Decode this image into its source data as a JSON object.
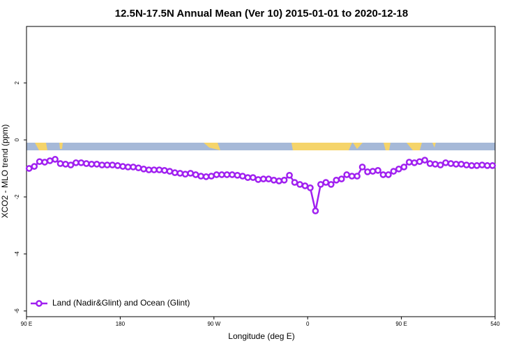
{
  "chart_data": {
    "type": "line",
    "title": "12.5N-17.5N Annual Mean (Ver 10)   2015-01-01 to 2020-12-18",
    "x_label": "Longitude (deg E)",
    "y_label": "XCO2 - MLO trend (ppm)",
    "xlim": [
      90,
      540
    ],
    "ylim": [
      -6.2,
      3.98
    ],
    "xticks": [
      {
        "value": 90,
        "label": "90 E"
      },
      180,
      {
        "value": 270,
        "label": "90 W"
      },
      {
        "value": 360,
        "label": "0"
      },
      {
        "value": 450,
        "label": "90 E"
      },
      540
    ],
    "yticks": [
      -6,
      -4,
      -2,
      0,
      2
    ],
    "legend": "bottom-left",
    "x": [
      92.5,
      97.5,
      102.5,
      107.5,
      112.5,
      117.5,
      122.5,
      127.5,
      132.5,
      137.5,
      142.5,
      147.5,
      152.5,
      157.5,
      162.5,
      167.5,
      172.5,
      177.5,
      182.5,
      187.5,
      192.5,
      197.5,
      202.5,
      207.5,
      212.5,
      217.5,
      222.5,
      227.5,
      232.5,
      237.5,
      242.5,
      247.5,
      252.5,
      257.5,
      262.5,
      267.5,
      272.5,
      277.5,
      282.5,
      287.5,
      292.5,
      297.5,
      302.5,
      307.5,
      312.5,
      317.5,
      322.5,
      327.5,
      332.5,
      337.5,
      342.5,
      347.5,
      352.5,
      357.5,
      362.5,
      367.5,
      372.5,
      377.5,
      382.5,
      387.5,
      392.5,
      397.5,
      402.5,
      407.5,
      412.5,
      417.5,
      422.5,
      427.5,
      432.5,
      437.5,
      442.5,
      447.5,
      452.5,
      457.5,
      462.5,
      467.5,
      472.5,
      477.5,
      482.5,
      487.5,
      492.5,
      497.5,
      502.5,
      507.5,
      512.5,
      517.5,
      522.5,
      527.5,
      532.5,
      537.5
    ],
    "series": [
      {
        "name": "Land (Nadir&Glint) and Ocean (Glint)",
        "color": "#a020f0",
        "values": [
          -1.0,
          -0.93,
          -0.76,
          -0.78,
          -0.73,
          -0.68,
          -0.83,
          -0.85,
          -0.88,
          -0.8,
          -0.8,
          -0.83,
          -0.85,
          -0.85,
          -0.88,
          -0.88,
          -0.88,
          -0.9,
          -0.93,
          -0.95,
          -0.95,
          -0.98,
          -1.02,
          -1.05,
          -1.05,
          -1.05,
          -1.07,
          -1.1,
          -1.15,
          -1.17,
          -1.2,
          -1.17,
          -1.22,
          -1.27,
          -1.29,
          -1.27,
          -1.22,
          -1.22,
          -1.22,
          -1.22,
          -1.24,
          -1.27,
          -1.32,
          -1.32,
          -1.39,
          -1.37,
          -1.37,
          -1.41,
          -1.44,
          -1.41,
          -1.24,
          -1.49,
          -1.56,
          -1.61,
          -1.68,
          -2.49,
          -1.56,
          -1.49,
          -1.56,
          -1.41,
          -1.37,
          -1.22,
          -1.27,
          -1.27,
          -0.95,
          -1.12,
          -1.1,
          -1.07,
          -1.22,
          -1.22,
          -1.1,
          -1.02,
          -0.95,
          -0.78,
          -0.8,
          -0.76,
          -0.71,
          -0.83,
          -0.85,
          -0.88,
          -0.8,
          -0.83,
          -0.85,
          -0.85,
          -0.88,
          -0.9,
          -0.9,
          -0.88,
          -0.9,
          -0.9
        ]
      }
    ]
  }
}
